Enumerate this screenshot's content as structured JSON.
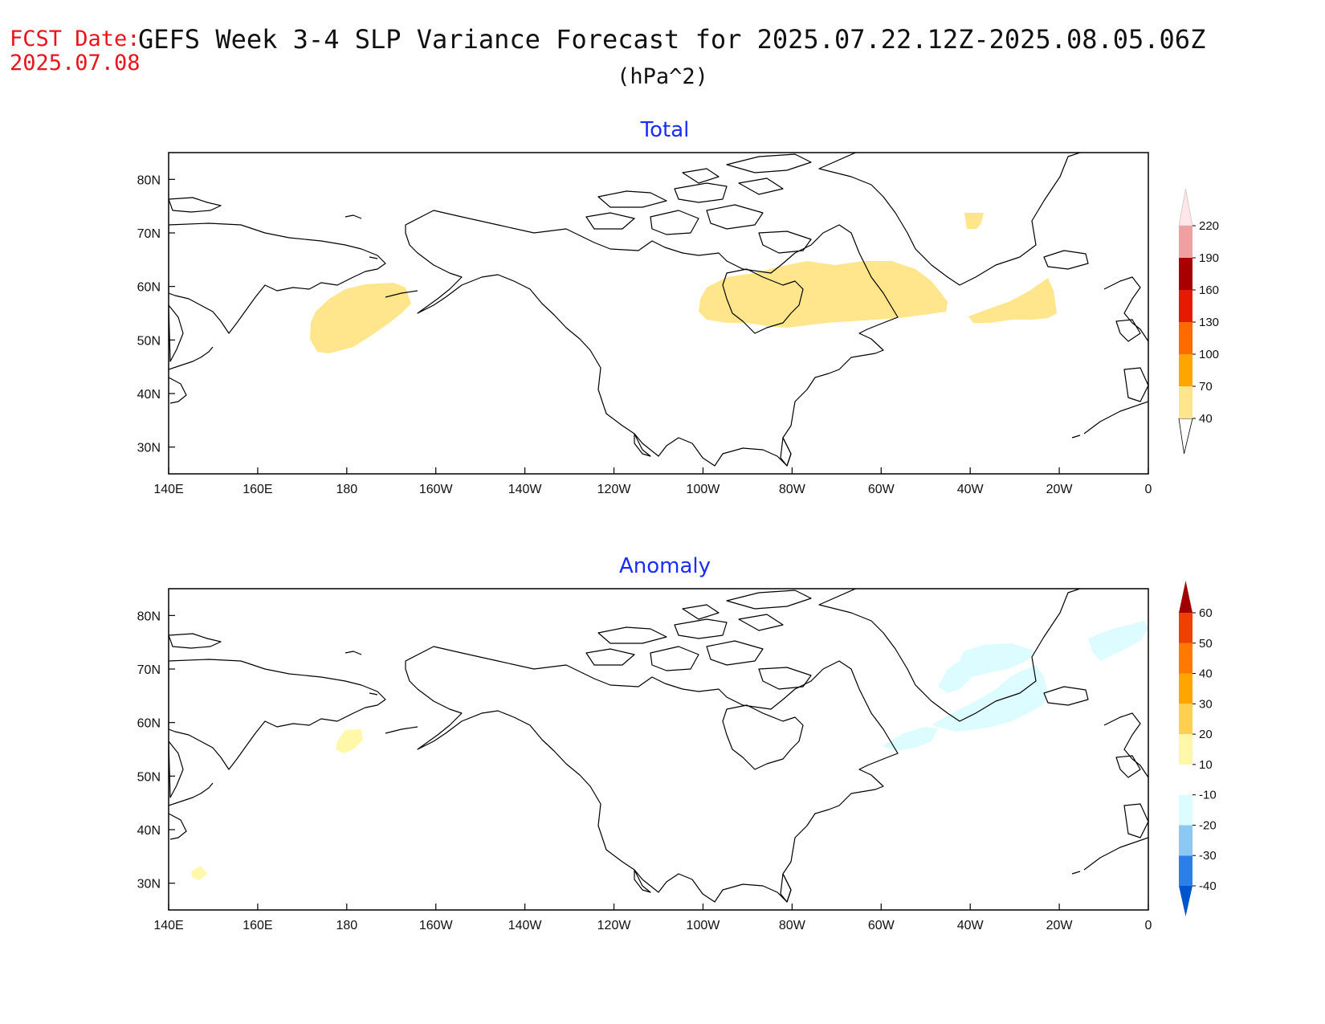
{
  "header": {
    "fcst_label": "FCST Date:",
    "fcst_date": "2025.07.08",
    "title": "GEFS Week 3-4 SLP Variance Forecast for 2025.07.22.12Z-2025.08.05.06Z",
    "units": "(hPa^2)"
  },
  "x_ticks": [
    "140E",
    "160E",
    "180",
    "160W",
    "140W",
    "120W",
    "100W",
    "80W",
    "60W",
    "40W",
    "20W",
    "0"
  ],
  "y_ticks": [
    "30N",
    "40N",
    "50N",
    "60N",
    "70N",
    "80N"
  ],
  "panels": [
    {
      "title": "Total",
      "colorbar": {
        "labels": [
          "40",
          "70",
          "100",
          "130",
          "160",
          "190",
          "220"
        ],
        "colors": [
          "#ffe68c",
          "#ffa500",
          "#ff6a00",
          "#e61a00",
          "#a80000",
          "#f0a0a0",
          "#ffe6ea"
        ]
      },
      "regions": [
        {
          "name": "north-pacific-blob",
          "level": "40-70",
          "color": "#ffe68c"
        },
        {
          "name": "canada-hudson-labrador-band",
          "level": "40-70",
          "color": "#ffe68c"
        },
        {
          "name": "greenland-small-patch",
          "level": "40-70",
          "color": "#ffe68c"
        },
        {
          "name": "north-atlantic-streak",
          "level": "40-70",
          "color": "#ffe68c"
        }
      ]
    },
    {
      "title": "Anomaly",
      "colorbar": {
        "labels": [
          "-40",
          "-30",
          "-20",
          "-10",
          "10",
          "20",
          "30",
          "40",
          "50",
          "60"
        ],
        "colors": [
          "#0055cc",
          "#2a80e8",
          "#8cc8f4",
          "#dcfcff",
          "#ffffff",
          "#fff8a8",
          "#ffd050",
          "#ffa500",
          "#ff7800",
          "#f04000",
          "#d41800",
          "#a00000"
        ]
      },
      "regions": [
        {
          "name": "aleutian-positive-patch",
          "level": "10-20",
          "color": "#fff8a8"
        },
        {
          "name": "west-pacific-positive-patch",
          "level": "10-20",
          "color": "#fff8a8"
        },
        {
          "name": "north-atlantic-negative-band",
          "level": "-20 to -10",
          "color": "#dcfcff"
        },
        {
          "name": "greenland-sea-negative-band",
          "level": "-20 to -10",
          "color": "#dcfcff"
        }
      ]
    }
  ]
}
